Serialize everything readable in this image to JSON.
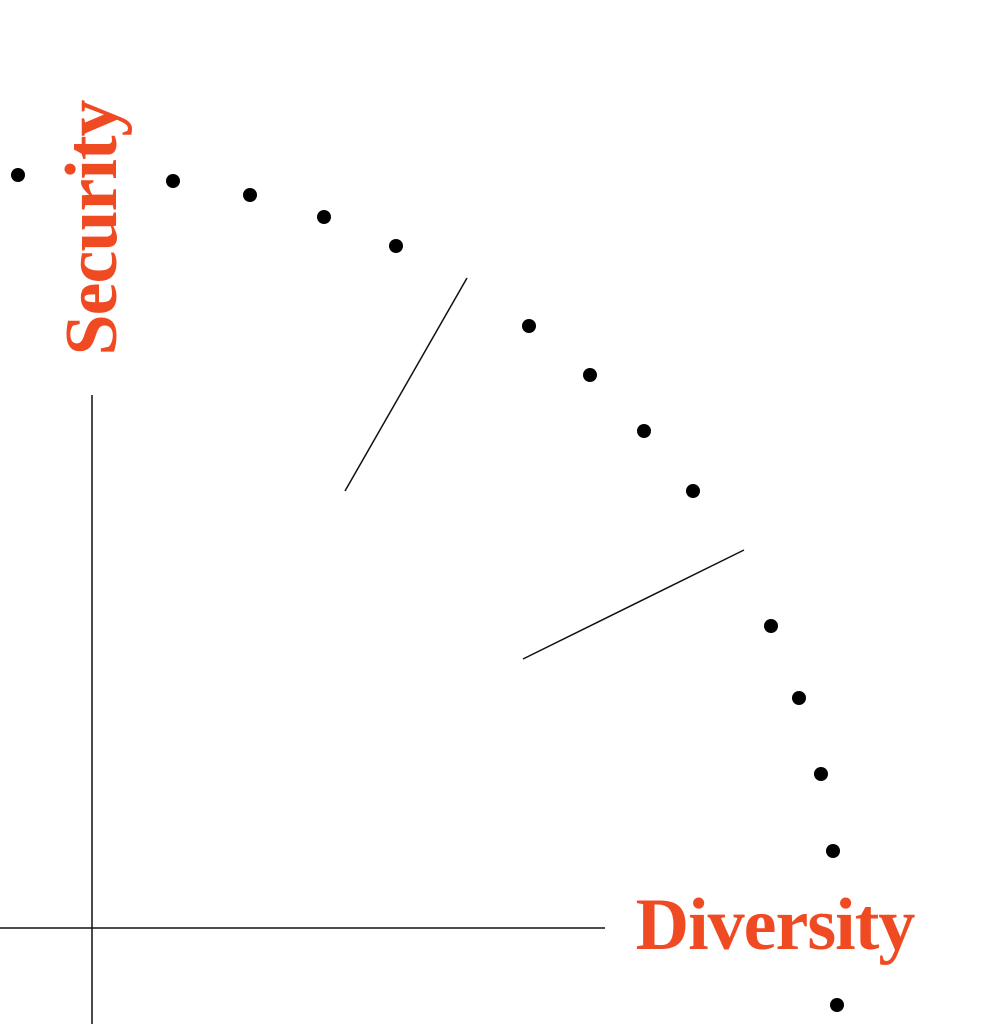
{
  "axes": {
    "y_label": "Security",
    "x_label": "Diversity"
  }
}
